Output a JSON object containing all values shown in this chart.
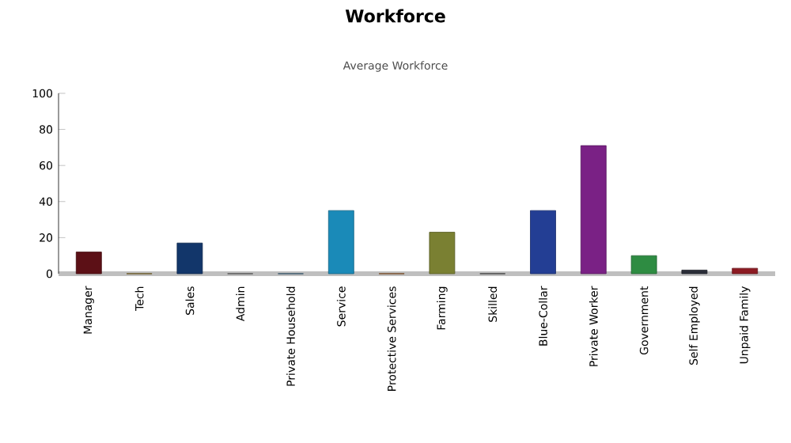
{
  "chart_data": {
    "type": "bar",
    "title": "Workforce",
    "subtitle": "Average Workforce",
    "categories": [
      "Manager",
      "Tech",
      "Sales",
      "Admin",
      "Private Household",
      "Service",
      "Protective Services",
      "Farming",
      "Skilled",
      "Blue-Collar",
      "Private Worker",
      "Government",
      "Self Employed",
      "Unpaid Family"
    ],
    "values": [
      12,
      0,
      17,
      0,
      0,
      35,
      0,
      23,
      0,
      35,
      71,
      10,
      2,
      3
    ],
    "colors": [
      "#5c1016",
      "#8a6d1c",
      "#12366a",
      "#6a6a6a",
      "#3a6a8a",
      "#1a8ab8",
      "#a05a20",
      "#7a8032",
      "#505050",
      "#233e94",
      "#7a2185",
      "#2e8c42",
      "#2a2d38",
      "#8c1a22"
    ],
    "ylim": [
      0,
      100
    ],
    "yticks": [
      0,
      20,
      40,
      60,
      80,
      100
    ],
    "grid": false
  }
}
